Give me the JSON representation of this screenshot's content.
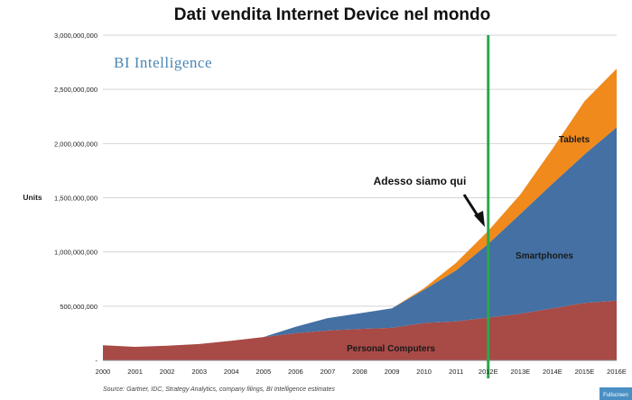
{
  "chart_data": {
    "type": "area",
    "stacked": true,
    "title": "Dati vendita Internet Device nel mondo",
    "ylabel": "Units",
    "xlabel": "",
    "ylim": [
      0,
      3000000000
    ],
    "yticks": [
      {
        "value": 0,
        "label": "-"
      },
      {
        "value": 500000000,
        "label": "500,000,000"
      },
      {
        "value": 1000000000,
        "label": "1,000,000,000"
      },
      {
        "value": 1500000000,
        "label": "1,500,000,000"
      },
      {
        "value": 2000000000,
        "label": "2,000,000,000"
      },
      {
        "value": 2500000000,
        "label": "2,500,000,000"
      },
      {
        "value": 3000000000,
        "label": "3,000,000,000"
      }
    ],
    "categories": [
      "2000",
      "2001",
      "2002",
      "2003",
      "2004",
      "2005",
      "2006",
      "2007",
      "2008",
      "2009",
      "2010",
      "2011",
      "2012E",
      "2013E",
      "2014E",
      "2015E",
      "2016E"
    ],
    "series": [
      {
        "name": "Personal Computers",
        "color": "#a84a46",
        "values": [
          140000000,
          125000000,
          135000000,
          150000000,
          180000000,
          215000000,
          250000000,
          275000000,
          290000000,
          300000000,
          345000000,
          360000000,
          395000000,
          430000000,
          480000000,
          530000000,
          550000000
        ]
      },
      {
        "name": "Smartphones",
        "color": "#4470a3",
        "values": [
          0,
          0,
          0,
          0,
          0,
          0,
          60000000,
          115000000,
          145000000,
          180000000,
          305000000,
          470000000,
          680000000,
          920000000,
          1150000000,
          1370000000,
          1600000000
        ]
      },
      {
        "name": "Tablets",
        "color": "#f08a1c",
        "values": [
          0,
          0,
          0,
          0,
          0,
          0,
          0,
          0,
          0,
          0,
          15000000,
          70000000,
          120000000,
          180000000,
          320000000,
          490000000,
          540000000
        ]
      }
    ],
    "marker": {
      "category": "2012E",
      "color": "#2aa84a",
      "annotation": "Adesso siamo qui"
    },
    "watermark": "BI Intelligence",
    "source": "Source: Gartner, IDC, Strategy Analytics, company filings, BI Intelligence estimates",
    "grid": true
  },
  "corner_label": "Fullscreen"
}
